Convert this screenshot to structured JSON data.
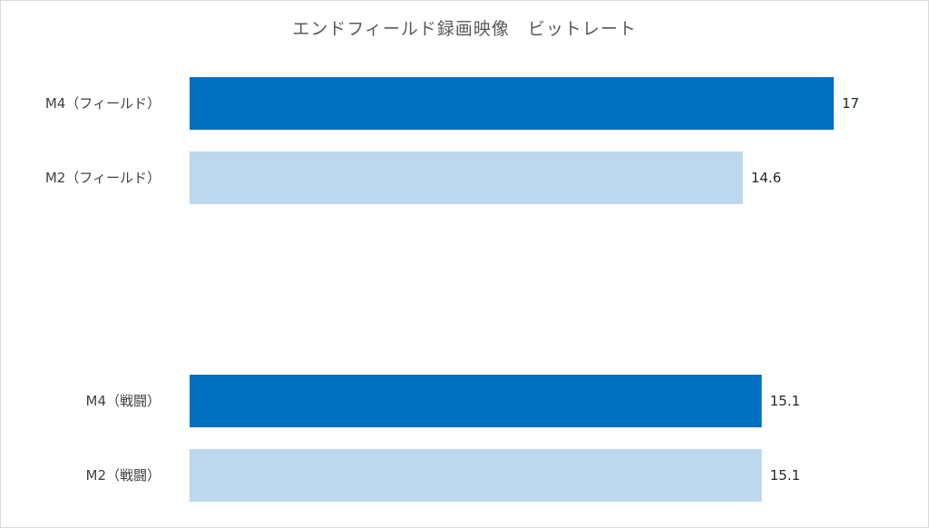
{
  "chart_data": {
    "type": "bar",
    "orientation": "horizontal",
    "title": "エンドフィールド録画映像　ビットレート",
    "categories": [
      "M4（フィールド）",
      "M2（フィールド）",
      "M4（戦闘）",
      "M2（戦闘）"
    ],
    "values": [
      17,
      14.6,
      15.1,
      15.1
    ],
    "value_labels": [
      "17",
      "14.6",
      "15.1",
      "15.1"
    ],
    "xlim": [
      0,
      17
    ],
    "grid": false,
    "legend": "none",
    "colors": {
      "M4": "#0070C0",
      "M2": "#BDD7EE"
    },
    "bar_colors": [
      "#0070C0",
      "#BDD7EE",
      "#0070C0",
      "#BDD7EE"
    ]
  }
}
